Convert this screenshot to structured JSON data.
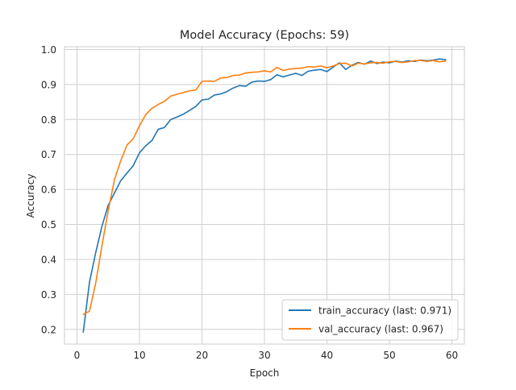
{
  "chart_data": {
    "type": "line",
    "title": "Model Accuracy (Epochs: 59)",
    "xlabel": "Epoch",
    "ylabel": "Accuracy",
    "xlim": [
      -2,
      62
    ],
    "ylim": [
      0.158,
      1.008
    ],
    "xticks": [
      0,
      10,
      20,
      30,
      40,
      50,
      60
    ],
    "yticks": [
      0.2,
      0.3,
      0.4,
      0.5,
      0.6,
      0.7,
      0.8,
      0.9,
      1.0
    ],
    "grid": true,
    "legend_position": "lower-right",
    "x": [
      1,
      2,
      3,
      4,
      5,
      6,
      7,
      8,
      9,
      10,
      11,
      12,
      13,
      14,
      15,
      16,
      17,
      18,
      19,
      20,
      21,
      22,
      23,
      24,
      25,
      26,
      27,
      28,
      29,
      30,
      31,
      32,
      33,
      34,
      35,
      36,
      37,
      38,
      39,
      40,
      41,
      42,
      43,
      44,
      45,
      46,
      47,
      48,
      49,
      50,
      51,
      52,
      53,
      54,
      55,
      56,
      57,
      58,
      59
    ],
    "series": [
      {
        "name": "train_accuracy (last: 0.971)",
        "color": "#1f77b4",
        "values": [
          0.192,
          0.335,
          0.42,
          0.495,
          0.555,
          0.59,
          0.625,
          0.647,
          0.668,
          0.705,
          0.725,
          0.74,
          0.772,
          0.777,
          0.8,
          0.807,
          0.815,
          0.826,
          0.837,
          0.856,
          0.858,
          0.87,
          0.873,
          0.88,
          0.89,
          0.897,
          0.895,
          0.907,
          0.91,
          0.909,
          0.914,
          0.928,
          0.922,
          0.927,
          0.932,
          0.926,
          0.938,
          0.941,
          0.943,
          0.937,
          0.95,
          0.962,
          0.943,
          0.955,
          0.963,
          0.958,
          0.967,
          0.96,
          0.964,
          0.962,
          0.967,
          0.964,
          0.968,
          0.966,
          0.97,
          0.968,
          0.97,
          0.973,
          0.971
        ]
      },
      {
        "name": "val_accuracy (last: 0.967)",
        "color": "#ff7f0e",
        "values": [
          0.243,
          0.252,
          0.333,
          0.44,
          0.54,
          0.628,
          0.682,
          0.727,
          0.745,
          0.782,
          0.814,
          0.832,
          0.843,
          0.852,
          0.867,
          0.872,
          0.877,
          0.882,
          0.884,
          0.909,
          0.91,
          0.909,
          0.919,
          0.92,
          0.926,
          0.927,
          0.933,
          0.935,
          0.936,
          0.939,
          0.936,
          0.949,
          0.94,
          0.944,
          0.946,
          0.947,
          0.951,
          0.95,
          0.953,
          0.948,
          0.953,
          0.96,
          0.961,
          0.953,
          0.961,
          0.959,
          0.962,
          0.963,
          0.961,
          0.965,
          0.966,
          0.963,
          0.965,
          0.968,
          0.969,
          0.966,
          0.969,
          0.965,
          0.967
        ]
      }
    ]
  }
}
